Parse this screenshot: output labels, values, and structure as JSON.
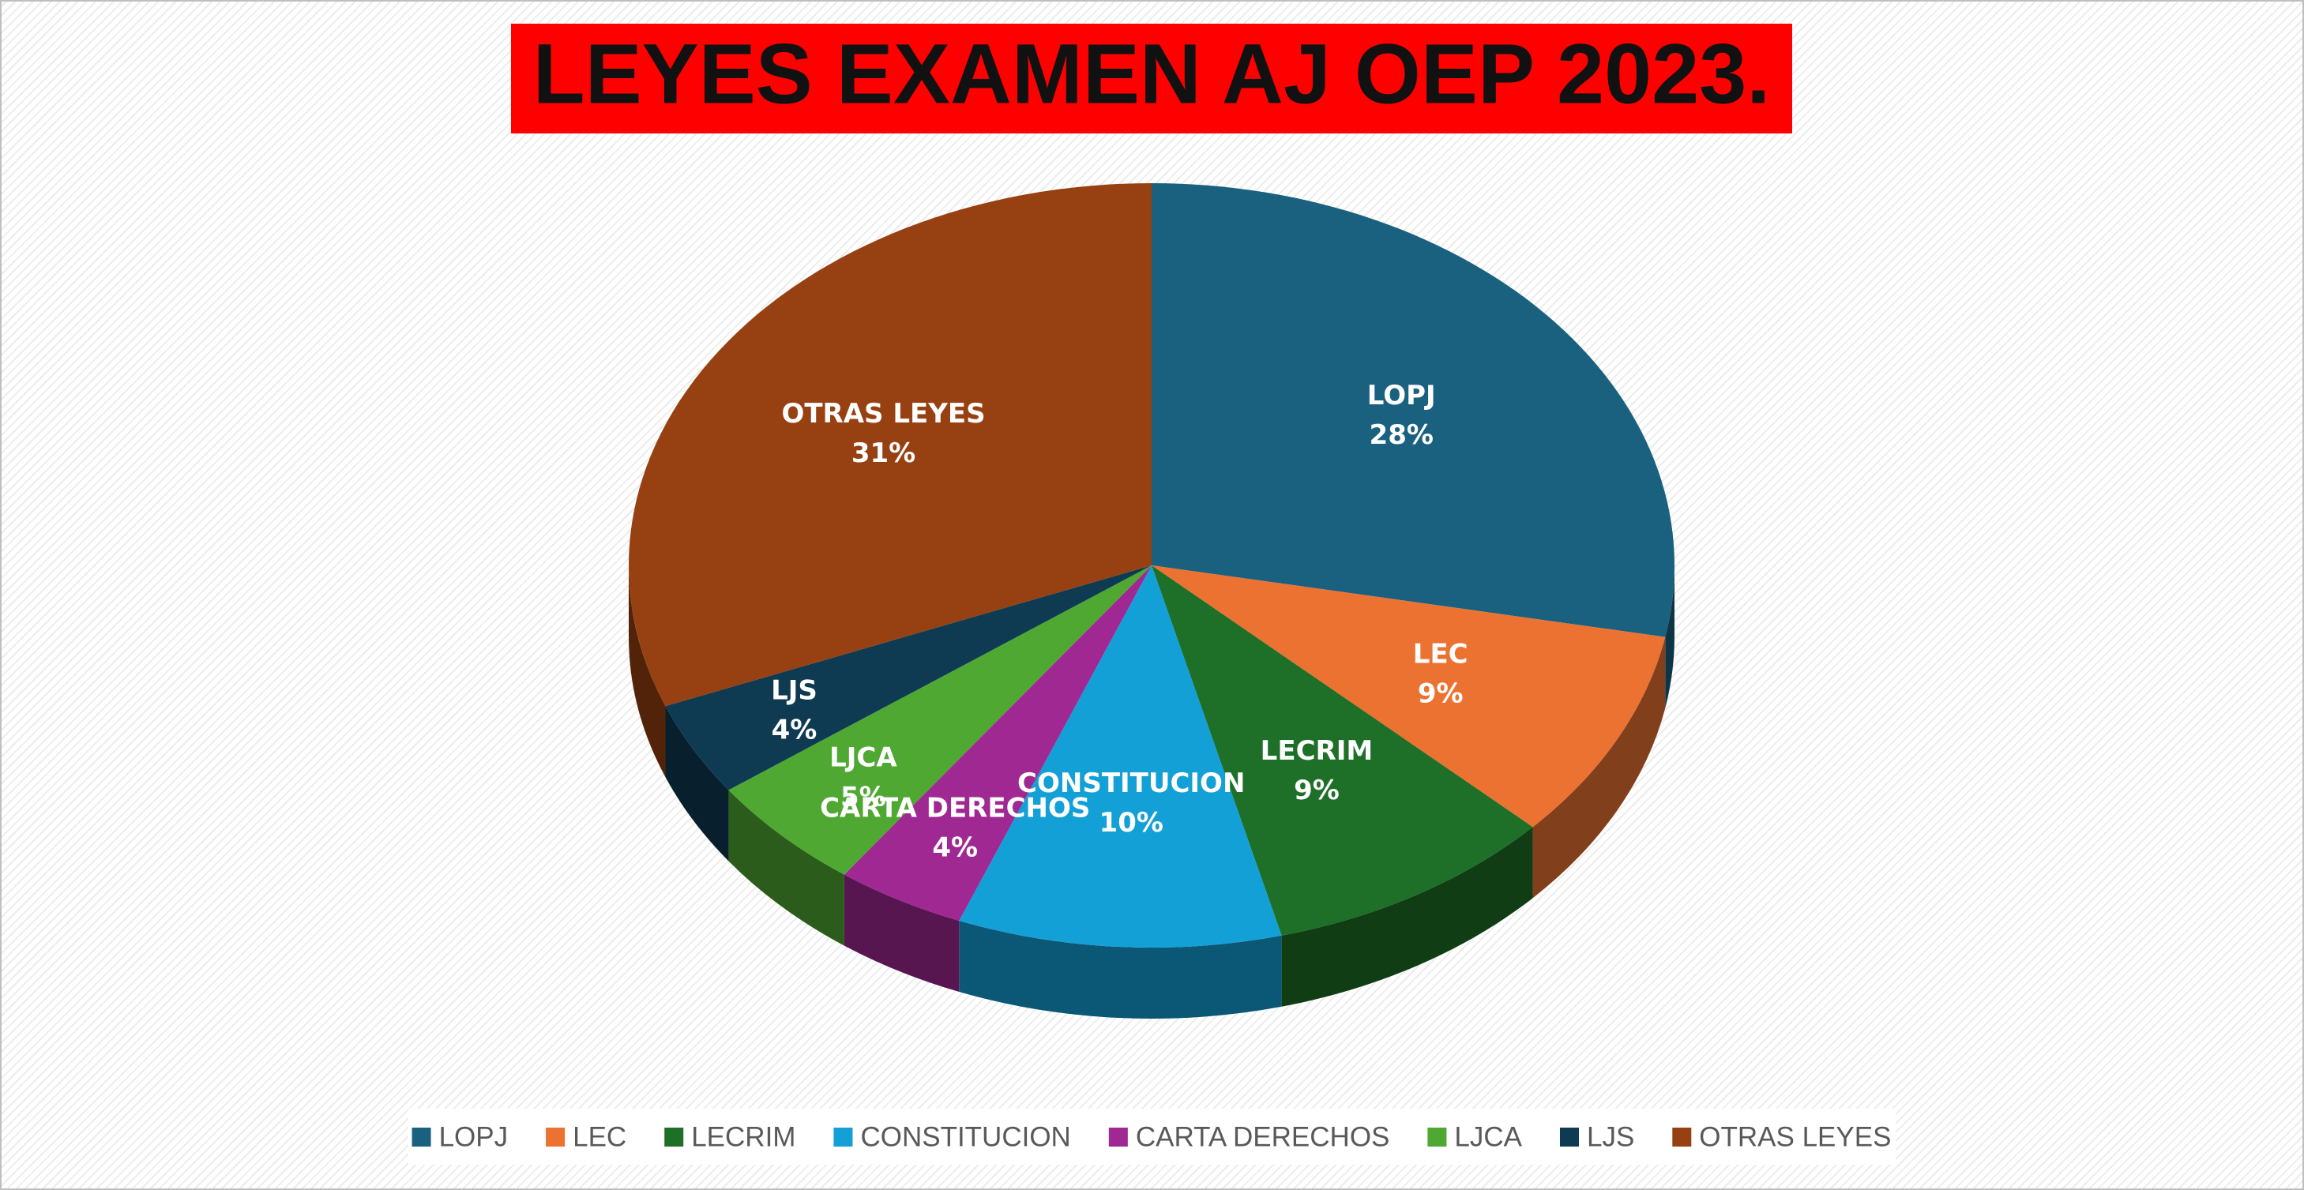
{
  "chart_data": {
    "type": "pie",
    "title": "LEYES EXAMEN AJ OEP 2023.",
    "categories": [
      "LOPJ",
      "LEC",
      "LECRIM",
      "CONSTITUCION",
      "CARTA DERECHOS",
      "LJCA",
      "LJS",
      "OTRAS LEYES"
    ],
    "values": [
      28,
      9,
      9,
      10,
      4,
      5,
      4,
      31
    ],
    "value_labels": [
      "28%",
      "9%",
      "9%",
      "10%",
      "4%",
      "5%",
      "4%",
      "31%"
    ],
    "colors": [
      "#1a6180",
      "#ec7232",
      "#1e6f27",
      "#12a0d6",
      "#a02893",
      "#4fa832",
      "#0e3b52",
      "#974011"
    ],
    "legend": "bottom"
  }
}
